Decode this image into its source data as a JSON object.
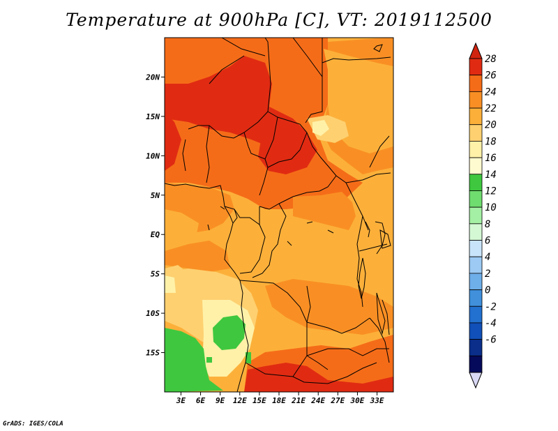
{
  "title": "Temperature at 900hPa [C], VT: 2019112500",
  "credit": "GrADS: IGES/COLA",
  "map": {
    "lat_range": [
      -20,
      25
    ],
    "lon_range": [
      0.5,
      35.5
    ],
    "lat_ticks": [
      {
        "lat": 20,
        "label": "20N"
      },
      {
        "lat": 15,
        "label": "15N"
      },
      {
        "lat": 10,
        "label": "10N"
      },
      {
        "lat": 5,
        "label": "5N"
      },
      {
        "lat": 0,
        "label": "EQ"
      },
      {
        "lat": -5,
        "label": "5S"
      },
      {
        "lat": -10,
        "label": "10S"
      },
      {
        "lat": -15,
        "label": "15S"
      }
    ],
    "lon_ticks": [
      {
        "lon": 3,
        "label": "3E"
      },
      {
        "lon": 6,
        "label": "6E"
      },
      {
        "lon": 9,
        "label": "9E"
      },
      {
        "lon": 12,
        "label": "12E"
      },
      {
        "lon": 15,
        "label": "15E"
      },
      {
        "lon": 18,
        "label": "18E"
      },
      {
        "lon": 21,
        "label": "21E"
      },
      {
        "lon": 24,
        "label": "24E"
      },
      {
        "lon": 27,
        "label": "27E"
      },
      {
        "lon": 30,
        "label": "30E"
      },
      {
        "lon": 33,
        "label": "33E"
      }
    ],
    "regions": [
      {
        "level": 26,
        "color": "#f56c18"
      },
      {
        "level": 28,
        "color": "#e02b12"
      },
      {
        "level": 22,
        "color": "#fcb03a"
      },
      {
        "level": 24,
        "color": "#f98f24"
      },
      {
        "level": 20,
        "color": "#fed070"
      },
      {
        "level": 18,
        "color": "#fff1a8"
      },
      {
        "level": 14,
        "color": "#3fc83f"
      }
    ]
  },
  "colorbar": {
    "labels": [
      "28",
      "26",
      "24",
      "22",
      "20",
      "18",
      "16",
      "14",
      "12",
      "10",
      "8",
      "6",
      "4",
      "2",
      "0",
      "-2",
      "-4",
      "-6"
    ],
    "colors": [
      "#e02b12",
      "#f56c18",
      "#f98f24",
      "#fcb03a",
      "#fed070",
      "#fff1a8",
      "#fffbd0",
      "#3fc83f",
      "#6fdc6f",
      "#a4f0a4",
      "#d4f8d4",
      "#c8e4fa",
      "#9ccaf4",
      "#6eaee9",
      "#4090dc",
      "#2270d0",
      "#1050b8",
      "#0a2e8a",
      "#060a5a"
    ],
    "top_arrow_color": "#d12410",
    "bottom_arrow_color": "#d8d8f4"
  }
}
